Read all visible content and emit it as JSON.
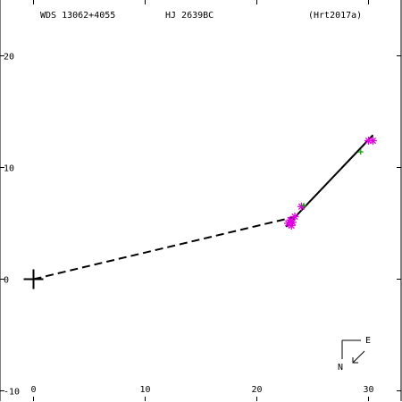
{
  "header": {
    "wds": "WDS 13062+4055",
    "pair": "HJ 2639BC",
    "ref": "(Hrt2017a)"
  },
  "compass": {
    "east": "E",
    "north": "N"
  },
  "chart_data": {
    "type": "scatter",
    "title": "",
    "xlabel": "",
    "ylabel": "",
    "xlim": [
      -3,
      33
    ],
    "ylim": [
      -11,
      25
    ],
    "x_ticks": [
      0,
      10,
      20,
      30
    ],
    "y_ticks": [
      -10,
      0,
      10,
      20
    ],
    "x_tick_labels": [
      "0",
      "10",
      "20",
      "30"
    ],
    "y_tick_labels": [
      "-10",
      "0",
      "10",
      "20"
    ],
    "primary": {
      "x": 0,
      "y": 0
    },
    "orbit_line": {
      "from": [
        22.6,
        4.7
      ],
      "to": [
        30.4,
        12.9
      ]
    },
    "dashed_line": {
      "from": [
        0,
        0
      ],
      "to": [
        23.5,
        5.6
      ]
    },
    "observations": [
      {
        "x": 22.8,
        "y": 5.0
      },
      {
        "x": 23.0,
        "y": 5.3
      },
      {
        "x": 23.2,
        "y": 5.1
      },
      {
        "x": 23.4,
        "y": 5.6
      },
      {
        "x": 23.1,
        "y": 4.8
      },
      {
        "x": 24.0,
        "y": 6.5
      },
      {
        "x": 30.0,
        "y": 12.4
      },
      {
        "x": 30.4,
        "y": 12.4
      }
    ],
    "other_points": [
      {
        "x": 29.3,
        "y": 11.4
      },
      {
        "x": 24.2,
        "y": 6.6
      }
    ],
    "colors": {
      "observation": "#e000e0",
      "other": "#00a000",
      "lines": "#000000"
    }
  }
}
